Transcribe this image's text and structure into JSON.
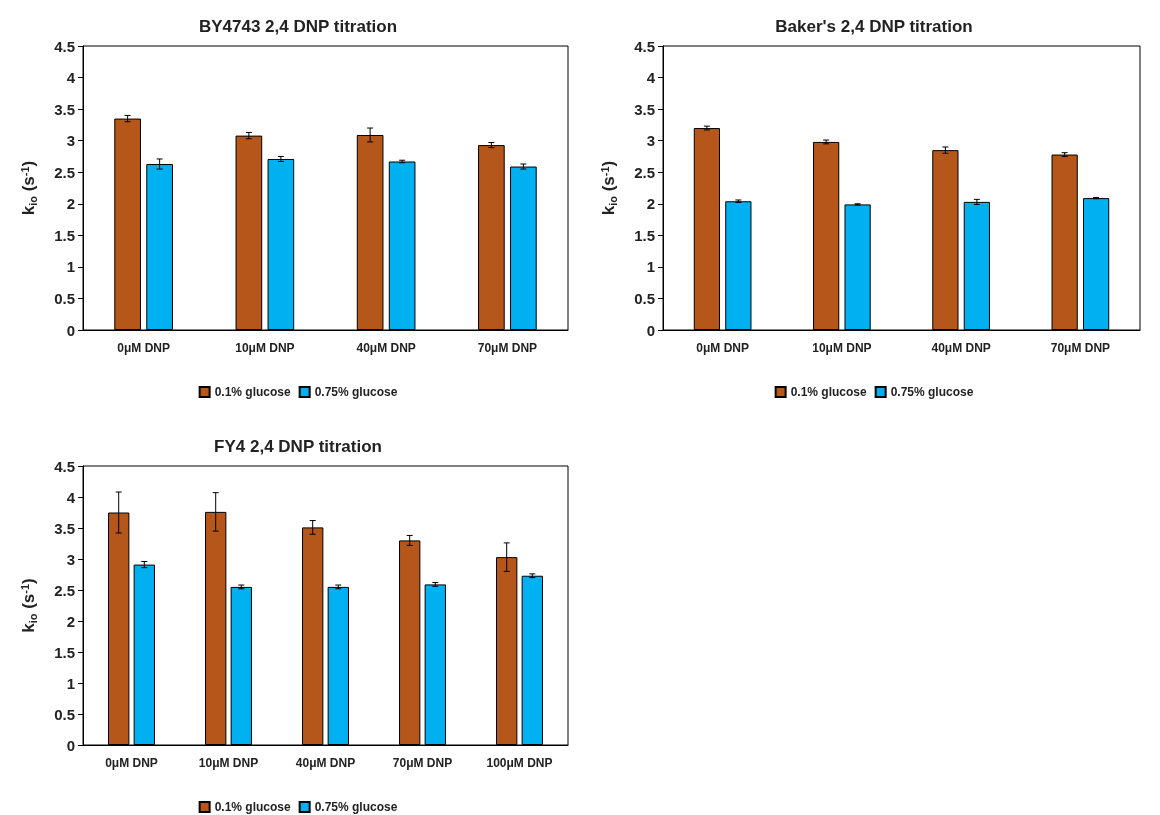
{
  "chart_data": [
    {
      "type": "bar",
      "title": "BY4743 2,4 DNP titration",
      "ylabel": "k$_{io}$ (s$^{-1}$)",
      "categories": [
        "0μM DNP",
        "10μM DNP",
        "40μM DNP",
        "70μM DNP"
      ],
      "ylim": [
        0,
        4.5
      ],
      "yticks": [
        0,
        0.5,
        1,
        1.5,
        2,
        2.5,
        3,
        3.5,
        4,
        4.5
      ],
      "grid": false,
      "legend": "bottom",
      "series": [
        {
          "name": "0.1% glucose",
          "color": "#b5561a",
          "values": [
            3.35,
            3.08,
            3.09,
            2.93
          ],
          "errors": [
            0.05,
            0.05,
            0.11,
            0.04
          ]
        },
        {
          "name": "0.75% glucose",
          "color": "#00b0f0",
          "values": [
            2.63,
            2.71,
            2.67,
            2.59
          ],
          "errors": [
            0.08,
            0.04,
            0.02,
            0.04
          ]
        }
      ]
    },
    {
      "type": "bar",
      "title": "Baker's 2,4 DNP titration",
      "ylabel": "k$_{io}$ (s$^{-1}$)",
      "categories": [
        "0μM DNP",
        "10μM DNP",
        "40μM DNP",
        "70μM DNP"
      ],
      "ylim": [
        0,
        4.5
      ],
      "yticks": [
        0,
        0.5,
        1,
        1.5,
        2,
        2.5,
        3,
        3.5,
        4,
        4.5
      ],
      "grid": false,
      "legend": "bottom",
      "series": [
        {
          "name": "0.1% glucose",
          "color": "#b5561a",
          "values": [
            3.2,
            2.98,
            2.85,
            2.78
          ],
          "errors": [
            0.03,
            0.03,
            0.05,
            0.03
          ]
        },
        {
          "name": "0.75% glucose",
          "color": "#00b0f0",
          "values": [
            2.04,
            1.99,
            2.03,
            2.09
          ],
          "errors": [
            0.02,
            0.01,
            0.04,
            0.01
          ]
        }
      ]
    },
    {
      "type": "bar",
      "title": "FY4 2,4 DNP titration",
      "ylabel": "k$_{io}$ (s$^{-1}$)",
      "categories": [
        "0μM DNP",
        "10μM DNP",
        "40μM DNP",
        "70μM DNP",
        "100μM DNP"
      ],
      "ylim": [
        0,
        4.5
      ],
      "yticks": [
        0,
        0.5,
        1,
        1.5,
        2,
        2.5,
        3,
        3.5,
        4,
        4.5
      ],
      "grid": false,
      "legend": "bottom",
      "series": [
        {
          "name": "0.1% glucose",
          "color": "#b5561a",
          "values": [
            3.75,
            3.76,
            3.51,
            3.3,
            3.03
          ],
          "errors": [
            0.33,
            0.31,
            0.11,
            0.08,
            0.23
          ]
        },
        {
          "name": "0.75% glucose",
          "color": "#00b0f0",
          "values": [
            2.91,
            2.55,
            2.55,
            2.59,
            2.73
          ],
          "errors": [
            0.05,
            0.03,
            0.03,
            0.03,
            0.03
          ]
        }
      ]
    }
  ]
}
